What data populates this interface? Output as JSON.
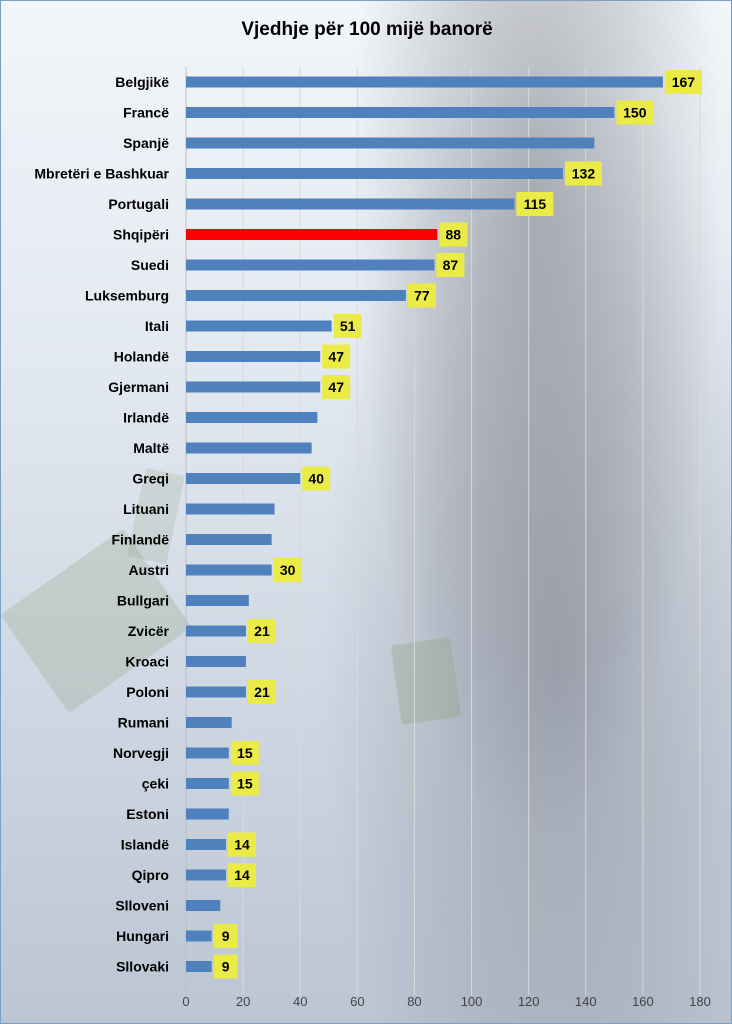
{
  "chart_data": {
    "type": "bar",
    "orientation": "horizontal",
    "title": "Vjedhje për 100 mijë banorë",
    "xlabel": "",
    "ylabel": "",
    "xlim": [
      0,
      180
    ],
    "xticks": [
      0,
      20,
      40,
      60,
      80,
      100,
      120,
      140,
      160,
      180
    ],
    "grid": true,
    "legend": "none",
    "categories": [
      "Belgjikë",
      "Francë",
      "Spanjë",
      "Mbretëri e Bashkuar",
      "Portugali",
      "Shqipëri",
      "Suedi",
      "Luksemburg",
      "Itali",
      "Holandë",
      "Gjermani",
      "Irlandë",
      "Maltë",
      "Greqi",
      "Lituani",
      "Finlandë",
      "Austri",
      "Bullgari",
      "Zvicër",
      "Kroaci",
      "Poloni",
      "Rumani",
      "Norvegji",
      "çeki",
      "Estoni",
      "Islandë",
      "Qipro",
      "Slloveni",
      "Hungari",
      "Sllovaki"
    ],
    "values": [
      167,
      150,
      143,
      132,
      115,
      88,
      87,
      77,
      51,
      47,
      47,
      46,
      44,
      40,
      31,
      30,
      30,
      22,
      21,
      21,
      21,
      16,
      15,
      15,
      15,
      14,
      14,
      12,
      9,
      9
    ],
    "data_labels": [
      "167",
      "150",
      "",
      "132",
      "115",
      "88",
      "87",
      "77",
      "51",
      "47",
      "47",
      "",
      "",
      "40",
      "",
      "",
      "30",
      "",
      "21",
      "",
      "21",
      "",
      "15",
      "15",
      "",
      "14",
      "14",
      "",
      "9",
      "9"
    ],
    "colors": {
      "default_bar": "#4f81bd",
      "highlight_bar": "#ff0000",
      "label_background": "#ebeb47",
      "grid": "#d9d9d9"
    },
    "highlight_category": "Shqipëri"
  }
}
